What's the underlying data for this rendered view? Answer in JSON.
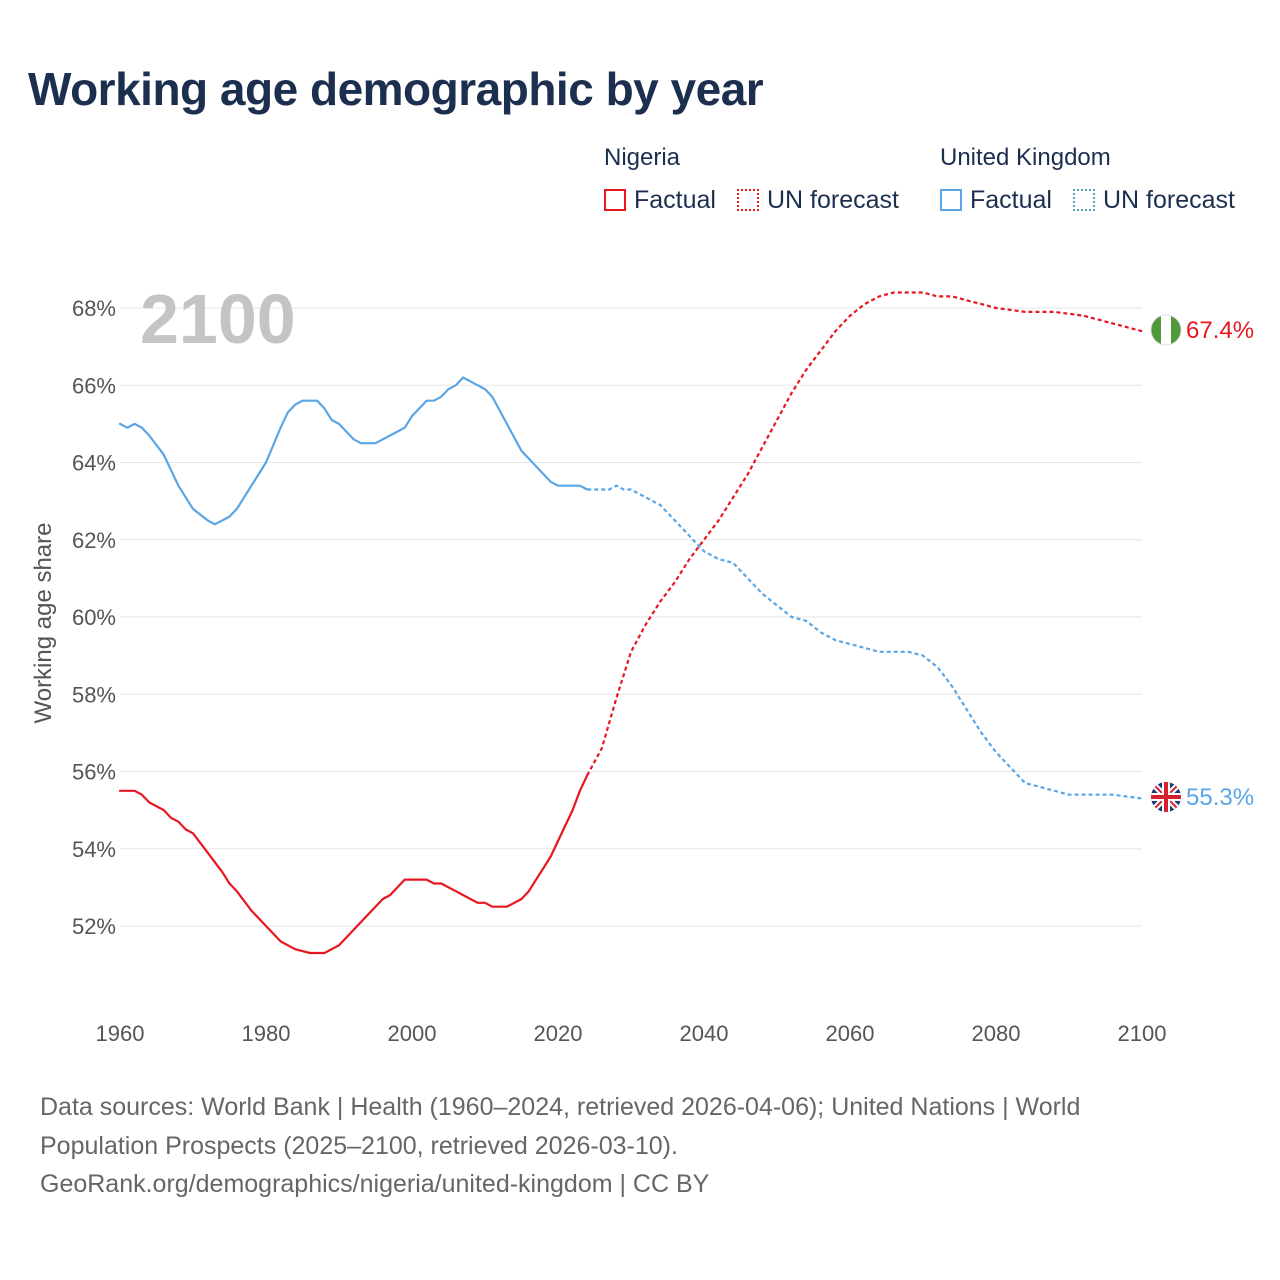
{
  "title": "Working age demographic by year",
  "legend": {
    "groups": [
      {
        "name": "Nigeria",
        "factual_label": "Factual",
        "forecast_label": "UN forecast"
      },
      {
        "name": "United Kingdom",
        "factual_label": "Factual",
        "forecast_label": "UN forecast"
      }
    ]
  },
  "colors": {
    "nigeria": "#e8171f",
    "uk": "#5aa5e6",
    "grid": "#e6e6e6",
    "axis_text": "#555555",
    "title": "#1c2f4f"
  },
  "footer": {
    "line1": "Data sources: World Bank | Health (1960–2024, retrieved 2026-04-06); United Nations | World",
    "line2": "Population Prospects (2025–2100, retrieved 2026-03-10).",
    "line3": "GeoRank.org/demographics/nigeria/united-kingdom | CC BY"
  },
  "chart_data": {
    "type": "line",
    "title": "Working age demographic by year",
    "current_year_label": "2100",
    "xlabel": "",
    "ylabel": "Working age share",
    "xlim": [
      1960,
      2100
    ],
    "ylim": [
      50,
      69
    ],
    "x_ticks": [
      "1960",
      "1980",
      "2000",
      "2020",
      "2040",
      "2060",
      "2080",
      "2100"
    ],
    "y_ticks": [
      "52%",
      "54%",
      "56%",
      "58%",
      "60%",
      "62%",
      "64%",
      "66%",
      "68%"
    ],
    "grid": true,
    "legend_position": "top-right",
    "series": [
      {
        "name": "Nigeria",
        "icon": "nigeria-flag-icon",
        "end_label": "67.4%",
        "factual": {
          "x": [
            1960,
            1962,
            1963,
            1964,
            1966,
            1967,
            1968,
            1969,
            1970,
            1972,
            1974,
            1975,
            1976,
            1978,
            1979,
            1980,
            1982,
            1983,
            1984,
            1986,
            1988,
            1990,
            1992,
            1994,
            1996,
            1997,
            1999,
            2000,
            2002,
            2003,
            2004,
            2006,
            2008,
            2009,
            2010,
            2011,
            2012,
            2013,
            2015,
            2016,
            2017,
            2018,
            2019,
            2020,
            2022,
            2023,
            2024
          ],
          "y": [
            55.5,
            55.5,
            55.4,
            55.2,
            55.0,
            54.8,
            54.7,
            54.5,
            54.4,
            53.9,
            53.4,
            53.1,
            52.9,
            52.4,
            52.2,
            52.0,
            51.6,
            51.5,
            51.4,
            51.3,
            51.3,
            51.5,
            51.9,
            52.3,
            52.7,
            52.8,
            53.2,
            53.2,
            53.2,
            53.1,
            53.1,
            52.9,
            52.7,
            52.6,
            52.6,
            52.5,
            52.5,
            52.5,
            52.7,
            52.9,
            53.2,
            53.5,
            53.8,
            54.2,
            55.0,
            55.5,
            55.9
          ]
        },
        "forecast": {
          "x": [
            2024,
            2026,
            2028,
            2030,
            2032,
            2034,
            2036,
            2038,
            2040,
            2042,
            2044,
            2046,
            2048,
            2050,
            2052,
            2054,
            2056,
            2058,
            2060,
            2062,
            2064,
            2066,
            2068,
            2070,
            2072,
            2074,
            2076,
            2078,
            2080,
            2082,
            2084,
            2086,
            2088,
            2090,
            2092,
            2094,
            2096,
            2098,
            2100
          ],
          "y": [
            55.9,
            56.6,
            57.9,
            59.1,
            59.8,
            60.4,
            60.9,
            61.5,
            62.0,
            62.5,
            63.1,
            63.7,
            64.4,
            65.1,
            65.8,
            66.4,
            66.9,
            67.4,
            67.8,
            68.1,
            68.3,
            68.4,
            68.4,
            68.4,
            68.3,
            68.3,
            68.2,
            68.1,
            68.0,
            67.95,
            67.9,
            67.9,
            67.9,
            67.85,
            67.8,
            67.7,
            67.6,
            67.5,
            67.4
          ]
        }
      },
      {
        "name": "United Kingdom",
        "icon": "uk-flag-icon",
        "end_label": "55.3%",
        "factual": {
          "x": [
            1960,
            1961,
            1962,
            1963,
            1964,
            1966,
            1968,
            1970,
            1972,
            1973,
            1975,
            1976,
            1978,
            1980,
            1982,
            1983,
            1984,
            1985,
            1986,
            1987,
            1988,
            1989,
            1990,
            1991,
            1992,
            1993,
            1994,
            1995,
            1996,
            1997,
            1998,
            1999,
            2000,
            2001,
            2002,
            2003,
            2004,
            2005,
            2006,
            2007,
            2008,
            2009,
            2010,
            2011,
            2013,
            2015,
            2017,
            2019,
            2020,
            2022,
            2023,
            2024
          ],
          "y": [
            65.0,
            64.9,
            65.0,
            64.9,
            64.7,
            64.2,
            63.4,
            62.8,
            62.5,
            62.4,
            62.6,
            62.8,
            63.4,
            64.0,
            64.9,
            65.3,
            65.5,
            65.6,
            65.6,
            65.6,
            65.4,
            65.1,
            65.0,
            64.8,
            64.6,
            64.5,
            64.5,
            64.5,
            64.6,
            64.7,
            64.8,
            64.9,
            65.2,
            65.4,
            65.6,
            65.6,
            65.7,
            65.9,
            66.0,
            66.2,
            66.1,
            66.0,
            65.9,
            65.7,
            65.0,
            64.3,
            63.9,
            63.5,
            63.4,
            63.4,
            63.4,
            63.3
          ]
        },
        "forecast": {
          "x": [
            2024,
            2026,
            2027,
            2028,
            2029,
            2030,
            2032,
            2034,
            2036,
            2038,
            2040,
            2042,
            2044,
            2046,
            2048,
            2050,
            2052,
            2054,
            2056,
            2058,
            2060,
            2062,
            2064,
            2066,
            2068,
            2070,
            2072,
            2074,
            2076,
            2078,
            2080,
            2082,
            2084,
            2086,
            2088,
            2090,
            2092,
            2094,
            2096,
            2098,
            2100
          ],
          "y": [
            63.3,
            63.3,
            63.3,
            63.4,
            63.3,
            63.3,
            63.1,
            62.9,
            62.5,
            62.1,
            61.7,
            61.5,
            61.4,
            61.0,
            60.6,
            60.3,
            60.0,
            59.9,
            59.6,
            59.4,
            59.3,
            59.2,
            59.1,
            59.1,
            59.1,
            59.0,
            58.7,
            58.2,
            57.6,
            57.0,
            56.5,
            56.1,
            55.7,
            55.6,
            55.5,
            55.4,
            55.4,
            55.4,
            55.4,
            55.35,
            55.3
          ]
        }
      }
    ]
  }
}
